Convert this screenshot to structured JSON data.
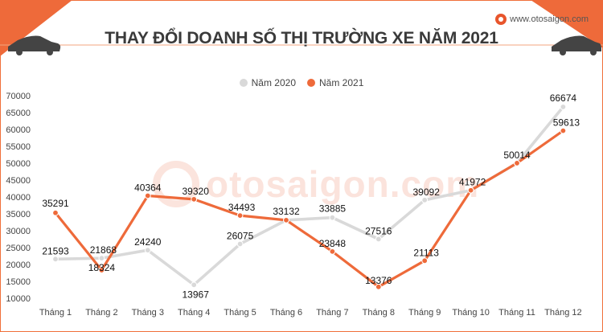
{
  "header": {
    "title": "THAY ĐỔI DOANH SỐ THỊ TRƯỜNG XE NĂM 2021",
    "site": "www.otosaigon.com",
    "watermark": "otosaigon.com"
  },
  "colors": {
    "accent": "#e8552c",
    "series_2020": "#d9d9d9",
    "series_2021": "#ee6a3a",
    "title": "#3a3a3a"
  },
  "chart_data": {
    "type": "line",
    "title": "THAY ĐỔI DOANH SỐ THỊ TRƯỜNG XE NĂM 2021",
    "xlabel": "",
    "ylabel": "",
    "categories": [
      "Tháng 1",
      "Tháng 2",
      "Tháng 3",
      "Tháng 4",
      "Tháng 5",
      "Tháng 6",
      "Tháng 7",
      "Tháng 8",
      "Tháng 9",
      "Tháng 10",
      "Tháng 11",
      "Tháng 12"
    ],
    "series": [
      {
        "name": "Năm 2020",
        "color": "#d9d9d9",
        "values": [
          21593,
          21868,
          24240,
          13967,
          26075,
          33132,
          33885,
          27516,
          39092,
          41972,
          50014,
          66674
        ]
      },
      {
        "name": "Năm 2021",
        "color": "#ee6a3a",
        "values": [
          35291,
          18324,
          40364,
          39320,
          34493,
          33132,
          23848,
          13376,
          21113,
          41972,
          50014,
          59613
        ]
      }
    ],
    "ylim": [
      10000,
      70000
    ],
    "yticks": [
      "10000",
      "15000",
      "20000",
      "25000",
      "30000",
      "35000",
      "40000",
      "45000",
      "50000",
      "55000",
      "60000",
      "65000",
      "70000"
    ],
    "legend": "top-center",
    "grid": false,
    "data_labels": [
      {
        "series": 0,
        "index": 0,
        "text": "21593"
      },
      {
        "series": 0,
        "index": 1,
        "text": "21868"
      },
      {
        "series": 0,
        "index": 2,
        "text": "24240"
      },
      {
        "series": 0,
        "index": 3,
        "text": "13967"
      },
      {
        "series": 0,
        "index": 4,
        "text": "26075"
      },
      {
        "series": 0,
        "index": 5,
        "text": "33132"
      },
      {
        "series": 0,
        "index": 6,
        "text": "33885"
      },
      {
        "series": 0,
        "index": 7,
        "text": "27516"
      },
      {
        "series": 0,
        "index": 8,
        "text": "39092"
      },
      {
        "series": 1,
        "index": 9,
        "text": "41972"
      },
      {
        "series": 1,
        "index": 10,
        "text": "50014"
      },
      {
        "series": 0,
        "index": 11,
        "text": "66674"
      },
      {
        "series": 1,
        "index": 0,
        "text": "35291"
      },
      {
        "series": 1,
        "index": 1,
        "text": "18324"
      },
      {
        "series": 1,
        "index": 2,
        "text": "40364"
      },
      {
        "series": 1,
        "index": 3,
        "text": "39320"
      },
      {
        "series": 1,
        "index": 4,
        "text": "34493"
      },
      {
        "series": 1,
        "index": 6,
        "text": "23848"
      },
      {
        "series": 1,
        "index": 7,
        "text": "13376"
      },
      {
        "series": 1,
        "index": 8,
        "text": "21113"
      },
      {
        "series": 1,
        "index": 11,
        "text": "59613"
      }
    ]
  }
}
